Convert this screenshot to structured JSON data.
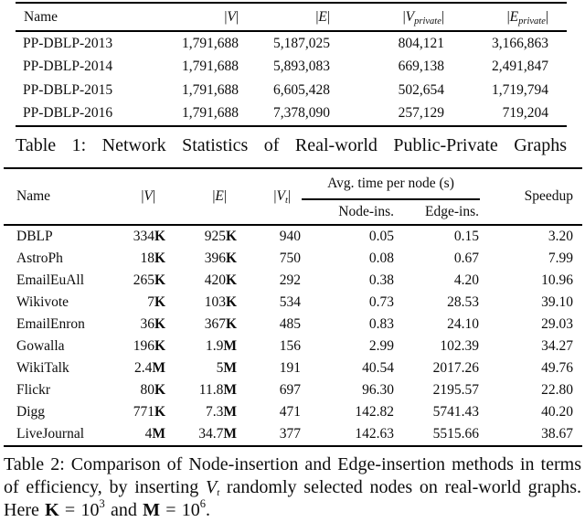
{
  "page": {
    "background": "#ffffff",
    "text_color": "#0d0d0d",
    "rule_color": "#000000"
  },
  "table1": {
    "columns": [
      {
        "label": "Name"
      },
      {
        "math": {
          "open": "|",
          "var": "V",
          "sub": "",
          "close": "|"
        }
      },
      {
        "math": {
          "open": "|",
          "var": "E",
          "sub": "",
          "close": "|"
        }
      },
      {
        "math": {
          "open": "|",
          "var": "V",
          "sub": "private",
          "close": "|"
        }
      },
      {
        "math": {
          "open": "|",
          "var": "E",
          "sub": "private",
          "close": "|"
        }
      }
    ],
    "rows": [
      [
        "PP-DBLP-2013",
        "1,791,688",
        "5,187,025",
        "804,121",
        "3,166,863"
      ],
      [
        "PP-DBLP-2014",
        "1,791,688",
        "5,893,083",
        "669,138",
        "2,491,847"
      ],
      [
        "PP-DBLP-2015",
        "1,791,688",
        "6,605,428",
        "502,654",
        "1,719,794"
      ],
      [
        "PP-DBLP-2016",
        "1,791,688",
        "7,378,090",
        "257,129",
        "719,204"
      ]
    ],
    "caption": "Table 1: Network Statistics of Real-world Public-Private Graphs"
  },
  "table2": {
    "columns": [
      {
        "label": "Name"
      },
      {
        "math": {
          "open": "|",
          "var": "V",
          "sub": "",
          "close": "|"
        }
      },
      {
        "math": {
          "open": "|",
          "var": "E",
          "sub": "",
          "close": "|"
        }
      },
      {
        "math": {
          "open": "|",
          "var": "V",
          "sub": "t",
          "close": "|"
        }
      }
    ],
    "group_header": "Avg. time per node (s)",
    "sub_headers": [
      "Node-ins.",
      "Edge-ins."
    ],
    "speedup_header": "Speedup",
    "rows": [
      [
        "DBLP",
        "334K",
        "925K",
        "940",
        "0.05",
        "0.15",
        "3.20"
      ],
      [
        "AstroPh",
        "18K",
        "396K",
        "750",
        "0.08",
        "0.67",
        "7.99"
      ],
      [
        "EmailEuAll",
        "265K",
        "420K",
        "292",
        "0.38",
        "4.20",
        "10.96"
      ],
      [
        "Wikivote",
        "7K",
        "103K",
        "534",
        "0.73",
        "28.53",
        "39.10"
      ],
      [
        "EmailEnron",
        "36K",
        "367K",
        "485",
        "0.83",
        "24.10",
        "29.03"
      ],
      [
        "Gowalla",
        "196K",
        "1.9M",
        "156",
        "2.99",
        "102.39",
        "34.27"
      ],
      [
        "WikiTalk",
        "2.4M",
        "5M",
        "191",
        "40.54",
        "2017.26",
        "49.76"
      ],
      [
        "Flickr",
        "80K",
        "11.8M",
        "697",
        "96.30",
        "2195.57",
        "22.80"
      ],
      [
        "Digg",
        "771K",
        "7.3M",
        "471",
        "142.82",
        "5741.43",
        "40.20"
      ],
      [
        "LiveJournal",
        "4M",
        "34.7M",
        "377",
        "142.63",
        "5515.66",
        "38.67"
      ]
    ],
    "caption_segments": [
      {
        "k": "",
        "t": "Table 2: Comparison of Node-insertion and Edge-insertion methods in terms of efficiency, by inserting "
      },
      {
        "k": "mi",
        "t": "V"
      },
      {
        "k": "msub",
        "t": "t"
      },
      {
        "k": "",
        "t": " randomly selected nodes on real-world graphs. Here "
      },
      {
        "k": "b",
        "t": "K"
      },
      {
        "k": "",
        "t": " = 10"
      },
      {
        "k": "sup",
        "t": "3"
      },
      {
        "k": "",
        "t": " and "
      },
      {
        "k": "b",
        "t": "M"
      },
      {
        "k": "",
        "t": " = 10"
      },
      {
        "k": "sup",
        "t": "6"
      },
      {
        "k": "",
        "t": "."
      }
    ]
  }
}
